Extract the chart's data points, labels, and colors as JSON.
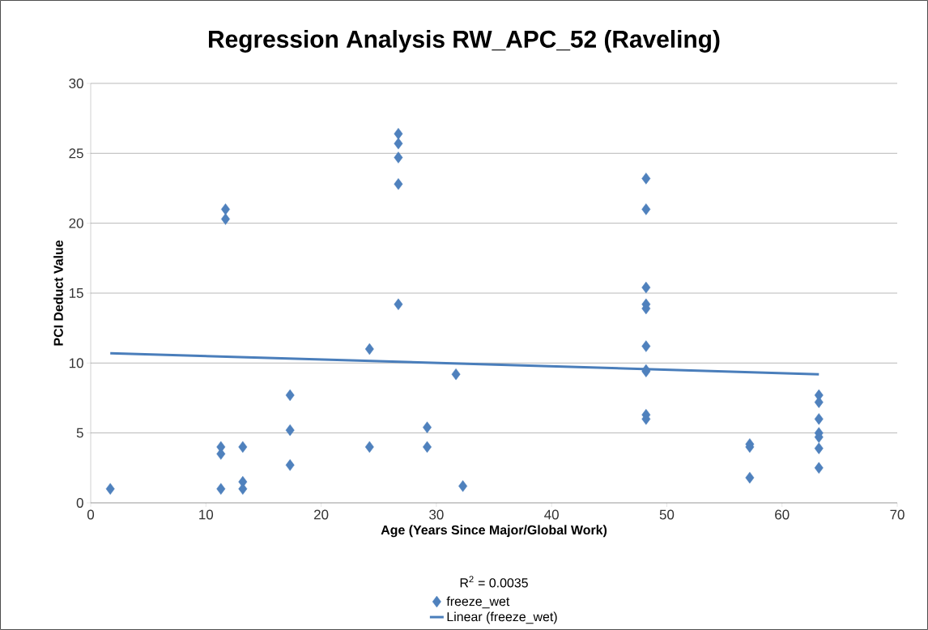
{
  "chart_data": {
    "type": "scatter",
    "title": "Regression Analysis RW_APC_52 (Raveling)",
    "xlabel": "Age (Years Since Major/Global Work)",
    "ylabel": "PCI Deduct Value",
    "annotations": [
      "R$^{2}$ = 0.0035"
    ],
    "xlim": [
      0,
      70
    ],
    "xticks": [
      0,
      10,
      20,
      30,
      40,
      50,
      60,
      70
    ],
    "ylim": [
      0,
      30
    ],
    "yticks": [
      0,
      5,
      10,
      15,
      20,
      25,
      30
    ],
    "grid": "y",
    "legend": "bottom",
    "series": [
      {
        "name": "freeze_wet",
        "marker": "diamond",
        "color": "#4f81bd",
        "x": [
          1.7,
          11.3,
          11.3,
          11.3,
          11.7,
          11.7,
          13.2,
          13.2,
          13.2,
          17.3,
          17.3,
          17.3,
          24.2,
          24.2,
          26.7,
          26.7,
          26.7,
          26.7,
          26.7,
          29.2,
          29.2,
          31.7,
          32.3,
          48.2,
          48.2,
          48.2,
          48.2,
          48.2,
          48.2,
          48.2,
          48.2,
          48.2,
          48.2,
          57.2,
          57.2,
          57.2,
          63.2,
          63.2,
          63.2,
          63.2,
          63.2,
          63.2,
          63.2
        ],
        "values": [
          1.0,
          4.0,
          3.5,
          1.0,
          21.0,
          20.3,
          4.0,
          1.5,
          1.0,
          7.7,
          5.2,
          2.7,
          11.0,
          4.0,
          26.4,
          25.7,
          24.7,
          22.8,
          14.2,
          5.4,
          4.0,
          9.2,
          1.2,
          23.2,
          21.0,
          15.4,
          14.2,
          13.9,
          11.2,
          9.5,
          9.4,
          6.3,
          6.0,
          4.2,
          4.0,
          1.8,
          7.7,
          7.2,
          6.0,
          5.0,
          4.7,
          3.9,
          2.5
        ]
      },
      {
        "name": "Linear (freeze_wet)",
        "type": "line",
        "color": "#4a7ebb",
        "x": [
          1.7,
          63.2
        ],
        "values": [
          10.7,
          9.2
        ]
      }
    ]
  }
}
